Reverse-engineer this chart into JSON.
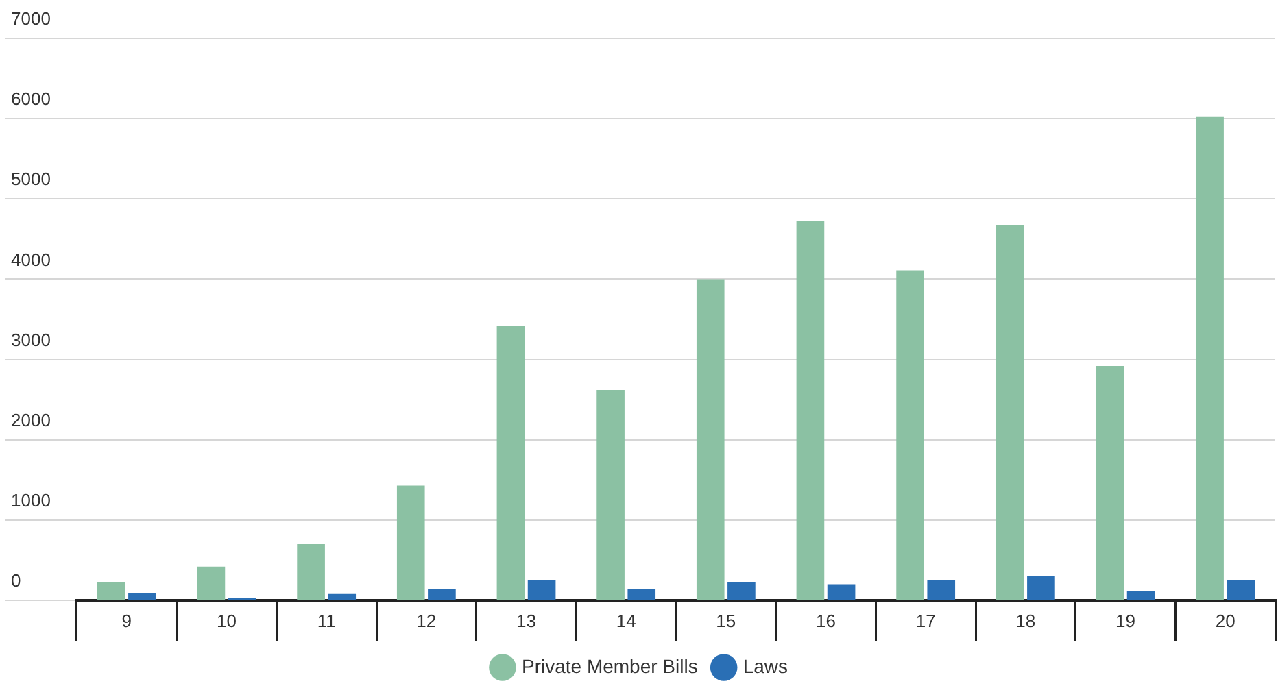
{
  "chart_data": {
    "type": "bar",
    "categories": [
      "9",
      "10",
      "11",
      "12",
      "13",
      "14",
      "15",
      "16",
      "17",
      "18",
      "19",
      "20"
    ],
    "series": [
      {
        "name": "Private Member Bills",
        "color": "#8bc1a3",
        "values": [
          230,
          420,
          700,
          1430,
          3420,
          2620,
          4000,
          4720,
          4110,
          4670,
          2920,
          6020
        ]
      },
      {
        "name": "Laws",
        "color": "#2a6fb5",
        "values": [
          90,
          30,
          80,
          140,
          250,
          140,
          230,
          200,
          250,
          300,
          120,
          250
        ]
      }
    ],
    "ylim": [
      0,
      7000
    ],
    "yticks": [
      0,
      1000,
      2000,
      3000,
      4000,
      5000,
      6000,
      7000
    ],
    "grid": "y",
    "legend": "bottom"
  }
}
